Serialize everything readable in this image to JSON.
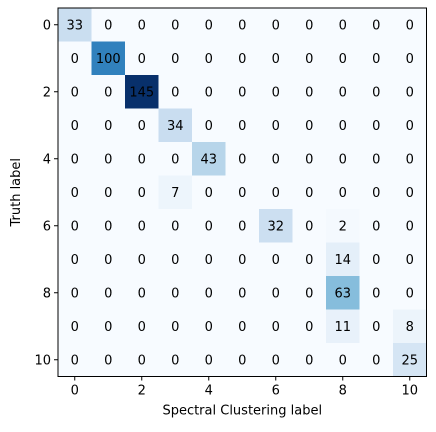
{
  "chart_data": {
    "type": "heatmap",
    "title": "",
    "xlabel": "Spectral Clustering label",
    "ylabel": "Truth label",
    "colormap": "Blues",
    "vmin": 0,
    "vmax": 145,
    "x_ticks": [
      0,
      2,
      4,
      6,
      8,
      10
    ],
    "y_ticks": [
      0,
      2,
      4,
      6,
      8,
      10
    ],
    "rows": [
      0,
      1,
      2,
      3,
      4,
      5,
      6,
      7,
      8,
      9,
      10
    ],
    "cols": [
      0,
      1,
      2,
      3,
      4,
      5,
      6,
      7,
      8,
      9,
      10
    ],
    "matrix": [
      [
        33,
        0,
        0,
        0,
        0,
        0,
        0,
        0,
        0,
        0,
        0
      ],
      [
        0,
        100,
        0,
        0,
        0,
        0,
        0,
        0,
        0,
        0,
        0
      ],
      [
        0,
        0,
        145,
        0,
        0,
        0,
        0,
        0,
        0,
        0,
        0
      ],
      [
        0,
        0,
        0,
        34,
        0,
        0,
        0,
        0,
        0,
        0,
        0
      ],
      [
        0,
        0,
        0,
        0,
        43,
        0,
        0,
        0,
        0,
        0,
        0
      ],
      [
        0,
        0,
        0,
        7,
        0,
        0,
        0,
        0,
        0,
        0,
        0
      ],
      [
        0,
        0,
        0,
        0,
        0,
        0,
        32,
        0,
        2,
        0,
        0
      ],
      [
        0,
        0,
        0,
        0,
        0,
        0,
        0,
        0,
        14,
        0,
        0
      ],
      [
        0,
        0,
        0,
        0,
        0,
        0,
        0,
        0,
        63,
        0,
        0
      ],
      [
        0,
        0,
        0,
        0,
        0,
        0,
        0,
        0,
        11,
        0,
        8
      ],
      [
        0,
        0,
        0,
        0,
        0,
        0,
        0,
        0,
        0,
        0,
        25
      ]
    ]
  }
}
